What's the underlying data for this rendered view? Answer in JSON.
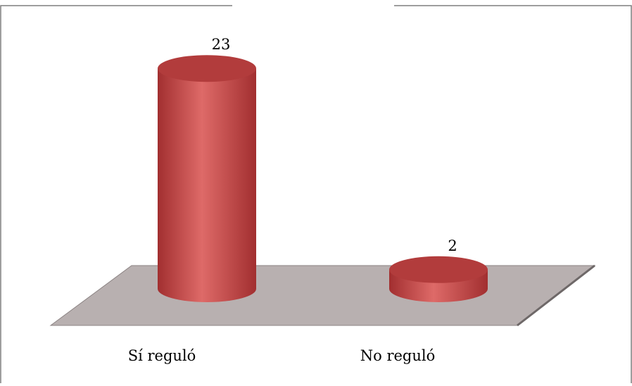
{
  "chart_data": {
    "type": "bar",
    "style": "3d-cylinder",
    "categories": [
      "Sí reguló",
      "No reguló"
    ],
    "values": [
      23,
      2
    ],
    "data_labels": [
      "23",
      "2"
    ],
    "title": "",
    "xlabel": "",
    "ylabel": "",
    "ylim": [
      0,
      25
    ],
    "grid": false,
    "legend": "none",
    "colors": {
      "bar": "#c94a4a",
      "bar_light": "#de6a68",
      "bar_dark": "#a22f30",
      "bar_top": "#b23c3c",
      "floor": "#b8b0b0",
      "floor_edge": "#8c8484",
      "frame": "#7f7f7f"
    }
  }
}
